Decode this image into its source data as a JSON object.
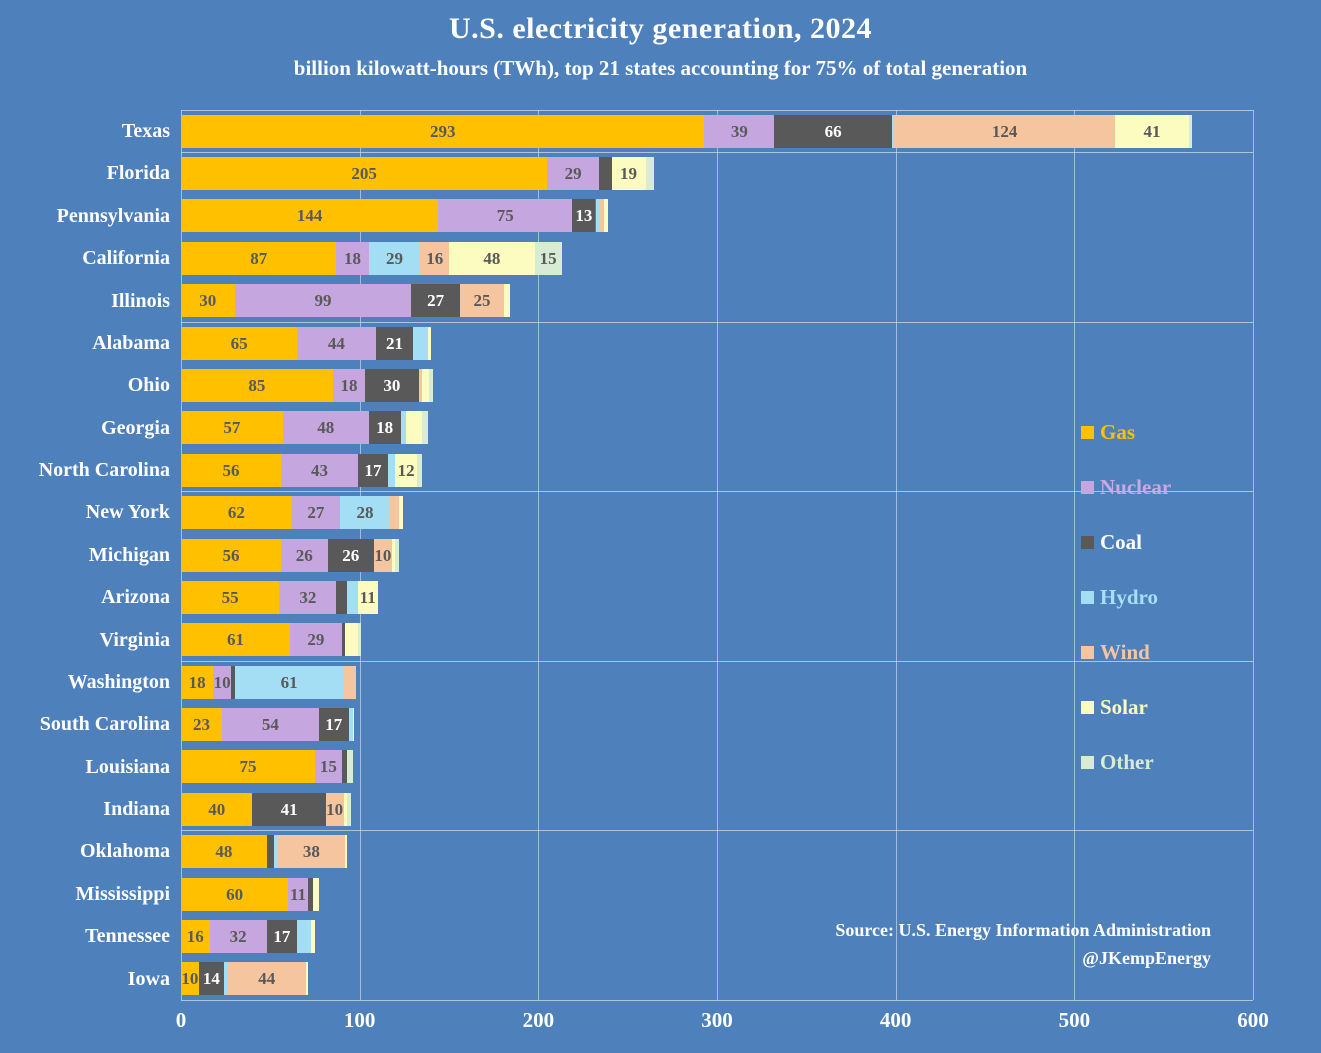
{
  "title": "U.S. electricity generation, 2024",
  "subtitle": "billion kilowatt-hours (TWh), top 21 states accounting for 75% of total generation",
  "source": {
    "line1": "Source: U.S. Energy Information Administration",
    "line2": "@JKempEnergy"
  },
  "colors": {
    "background": "#4E80BC",
    "text": "#FFFFFF",
    "value_label": "#595959",
    "value_label_on_dark": "#FFFFFF",
    "gridline": "#D2DAE8"
  },
  "chart_data": {
    "type": "bar",
    "orientation": "horizontal",
    "stacked": true,
    "title": "U.S. electricity generation, 2024",
    "subtitle": "billion kilowatt-hours (TWh), top 21 states accounting for 75% of total generation",
    "xlabel": "",
    "ylabel": "",
    "xlim": [
      0,
      600
    ],
    "xticks": [
      0,
      100,
      200,
      300,
      400,
      500,
      600
    ],
    "grid": true,
    "legend_position": "middle-right",
    "label_min_value": 10,
    "categories": [
      "Texas",
      "Florida",
      "Pennsylvania",
      "California",
      "Illinois",
      "Alabama",
      "Ohio",
      "Georgia",
      "North Carolina",
      "New York",
      "Michigan",
      "Arizona",
      "Virginia",
      "Washington",
      "South Carolina",
      "Louisiana",
      "Indiana",
      "Oklahoma",
      "Mississippi",
      "Tennessee",
      "Iowa"
    ],
    "series": [
      {
        "name": "Gas",
        "color": "#FFC000",
        "text_color": "#FFC000",
        "values": [
          293,
          205,
          144,
          87,
          30,
          65,
          85,
          57,
          56,
          62,
          56,
          55,
          61,
          18,
          23,
          75,
          40,
          48,
          60,
          16,
          10
        ]
      },
      {
        "name": "Nuclear",
        "color": "#C6A6DE",
        "text_color": "#C9A9E0",
        "values": [
          39,
          29,
          75,
          18,
          99,
          44,
          18,
          48,
          43,
          27,
          26,
          32,
          29,
          10,
          54,
          15,
          0,
          0,
          11,
          32,
          0
        ]
      },
      {
        "name": "Coal",
        "color": "#595959",
        "text_color": "#FFFFFF",
        "values": [
          66,
          7,
          13,
          0,
          27,
          21,
          30,
          18,
          17,
          0,
          26,
          6,
          2,
          2,
          17,
          3,
          41,
          4,
          3,
          17,
          14
        ]
      },
      {
        "name": "Hydro",
        "color": "#A3DEF4",
        "text_color": "#A8DFF5",
        "values": [
          1,
          0,
          2,
          29,
          0,
          8,
          0,
          3,
          4,
          28,
          0,
          6,
          0,
          61,
          2,
          0,
          0,
          2,
          0,
          8,
          2
        ]
      },
      {
        "name": "Wind",
        "color": "#F5C5A0",
        "text_color": "#F5C5A0",
        "values": [
          124,
          0,
          3,
          16,
          25,
          0,
          2,
          0,
          0,
          5,
          10,
          0,
          0,
          7,
          0,
          0,
          10,
          38,
          0,
          0,
          44
        ]
      },
      {
        "name": "Solar",
        "color": "#FDFCC0",
        "text_color": "#FDFCC0",
        "values": [
          41,
          19,
          2,
          48,
          3,
          2,
          4,
          9,
          12,
          2,
          2,
          11,
          7,
          0,
          1,
          0,
          2,
          1,
          3,
          2,
          1
        ]
      },
      {
        "name": "Other",
        "color": "#D8EBD4",
        "text_color": "#D8EBD4",
        "values": [
          2,
          5,
          0,
          15,
          0,
          0,
          2,
          3,
          3,
          0,
          2,
          0,
          2,
          0,
          0,
          3,
          2,
          0,
          0,
          0,
          0
        ]
      }
    ],
    "totals": [
      566,
      265,
      239,
      213,
      184,
      140,
      141,
      138,
      135,
      124,
      122,
      110,
      101,
      98,
      97,
      96,
      95,
      93,
      77,
      75,
      71
    ]
  }
}
